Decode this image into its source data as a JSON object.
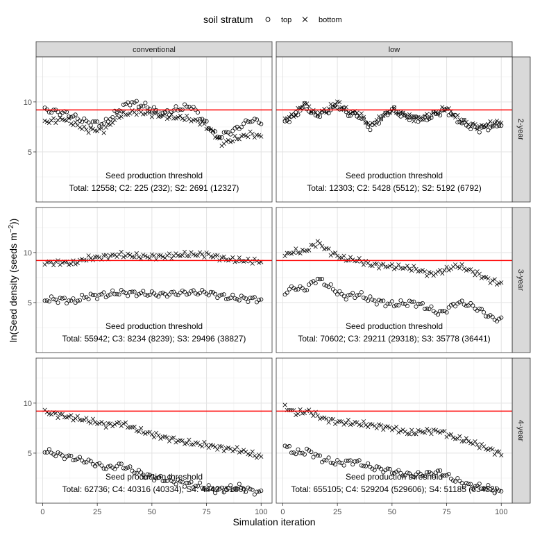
{
  "chart_data": {
    "type": "scatter",
    "xlabel": "Simulation iteration",
    "ylabel_prefix": "ln(Seed density (seeds m",
    "ylabel_sup": "−2",
    "ylabel_suffix": "))",
    "legend_title": "soil stratum",
    "legend_items": [
      {
        "key": "top",
        "label": "top",
        "shape": "circle"
      },
      {
        "key": "bottom",
        "label": "bottom",
        "shape": "cross"
      }
    ],
    "legend_placement": "top",
    "xlim": [
      -3,
      105
    ],
    "ylim": [
      0,
      14.5
    ],
    "x_ticks": [
      0,
      25,
      50,
      75,
      100
    ],
    "y_ticks": [
      5,
      10
    ],
    "grid": true,
    "threshold_value": 9.2,
    "threshold_color": "#ff0000",
    "col_strips": [
      "conventional",
      "low"
    ],
    "row_strips": [
      "2-year",
      "3-year",
      "4-year"
    ],
    "panels": [
      {
        "row": 0,
        "col": 0,
        "threshold_label": "Seed production threshold",
        "total_text": "Total: 12558; C2: 225 (232); S2: 2691 (12327)",
        "top_anchors": [
          [
            1,
            9.2
          ],
          [
            10,
            8.9
          ],
          [
            20,
            8.0
          ],
          [
            28,
            7.8
          ],
          [
            35,
            9.2
          ],
          [
            40,
            10.0
          ],
          [
            48,
            9.5
          ],
          [
            55,
            8.8
          ],
          [
            62,
            9.3
          ],
          [
            68,
            9.6
          ],
          [
            75,
            7.8
          ],
          [
            80,
            6.5
          ],
          [
            88,
            7.2
          ],
          [
            95,
            8.2
          ],
          [
            100,
            8.0
          ]
        ],
        "bottom_anchors": [
          [
            1,
            8.0
          ],
          [
            10,
            8.3
          ],
          [
            20,
            7.2
          ],
          [
            28,
            7.2
          ],
          [
            35,
            8.6
          ],
          [
            42,
            9.0
          ],
          [
            50,
            8.8
          ],
          [
            58,
            8.5
          ],
          [
            65,
            8.4
          ],
          [
            72,
            8.0
          ],
          [
            78,
            7.0
          ],
          [
            82,
            5.8
          ],
          [
            88,
            6.3
          ],
          [
            95,
            6.8
          ],
          [
            100,
            6.5
          ]
        ]
      },
      {
        "row": 0,
        "col": 1,
        "threshold_label": "Seed production threshold",
        "total_text": "Total: 12303; C2: 5428 (5512); S2: 5192 (6792)",
        "top_anchors": [
          [
            1,
            8.0
          ],
          [
            5,
            8.6
          ],
          [
            10,
            9.6
          ],
          [
            15,
            8.6
          ],
          [
            20,
            9.0
          ],
          [
            25,
            9.6
          ],
          [
            30,
            8.8
          ],
          [
            35,
            8.6
          ],
          [
            40,
            7.4
          ],
          [
            45,
            8.3
          ],
          [
            50,
            9.3
          ],
          [
            55,
            8.6
          ],
          [
            60,
            8.4
          ],
          [
            65,
            8.2
          ],
          [
            70,
            8.8
          ],
          [
            75,
            9.2
          ],
          [
            80,
            8.2
          ],
          [
            85,
            7.6
          ],
          [
            90,
            7.3
          ],
          [
            95,
            7.5
          ],
          [
            100,
            7.8
          ]
        ],
        "bottom_anchors": [
          [
            1,
            8.4
          ],
          [
            5,
            8.6
          ],
          [
            10,
            9.9
          ],
          [
            15,
            8.8
          ],
          [
            20,
            9.2
          ],
          [
            25,
            10.0
          ],
          [
            30,
            9.0
          ],
          [
            35,
            8.9
          ],
          [
            40,
            7.6
          ],
          [
            45,
            8.5
          ],
          [
            50,
            9.2
          ],
          [
            55,
            8.8
          ],
          [
            60,
            8.3
          ],
          [
            65,
            8.5
          ],
          [
            70,
            8.9
          ],
          [
            75,
            9.4
          ],
          [
            80,
            8.4
          ],
          [
            85,
            7.8
          ],
          [
            90,
            7.5
          ],
          [
            95,
            7.8
          ],
          [
            100,
            8.0
          ]
        ]
      },
      {
        "row": 1,
        "col": 0,
        "threshold_label": "Seed production threshold",
        "total_text": "Total: 55942; C3: 8234 (8239); S3: 29496 (38827)",
        "top_anchors": [
          [
            1,
            5.3
          ],
          [
            10,
            5.3
          ],
          [
            14,
            5.1
          ],
          [
            20,
            5.6
          ],
          [
            30,
            5.8
          ],
          [
            35,
            6.0
          ],
          [
            45,
            5.9
          ],
          [
            55,
            5.8
          ],
          [
            65,
            6.0
          ],
          [
            75,
            6.0
          ],
          [
            85,
            5.5
          ],
          [
            100,
            5.3
          ]
        ],
        "bottom_anchors": [
          [
            1,
            9.0
          ],
          [
            10,
            9.0
          ],
          [
            14,
            8.9
          ],
          [
            20,
            9.4
          ],
          [
            30,
            9.6
          ],
          [
            35,
            9.8
          ],
          [
            45,
            9.6
          ],
          [
            55,
            9.6
          ],
          [
            65,
            9.8
          ],
          [
            75,
            9.8
          ],
          [
            85,
            9.3
          ],
          [
            100,
            9.1
          ]
        ]
      },
      {
        "row": 1,
        "col": 1,
        "threshold_label": "Seed production threshold",
        "total_text": "Total: 70602;  C3: 29211 (29318); S3: 35778 (36441)",
        "top_anchors": [
          [
            1,
            6.0
          ],
          [
            5,
            6.5
          ],
          [
            10,
            6.3
          ],
          [
            16,
            7.4
          ],
          [
            22,
            6.5
          ],
          [
            28,
            5.6
          ],
          [
            35,
            5.8
          ],
          [
            40,
            5.3
          ],
          [
            50,
            4.8
          ],
          [
            60,
            5.0
          ],
          [
            65,
            4.6
          ],
          [
            72,
            3.9
          ],
          [
            75,
            4.3
          ],
          [
            80,
            5.0
          ],
          [
            85,
            4.8
          ],
          [
            90,
            4.3
          ],
          [
            96,
            3.4
          ],
          [
            100,
            3.3
          ]
        ],
        "bottom_anchors": [
          [
            1,
            9.7
          ],
          [
            5,
            10.1
          ],
          [
            10,
            10.1
          ],
          [
            16,
            11.0
          ],
          [
            22,
            10.0
          ],
          [
            28,
            9.4
          ],
          [
            35,
            9.2
          ],
          [
            40,
            8.8
          ],
          [
            50,
            8.6
          ],
          [
            60,
            8.4
          ],
          [
            68,
            7.8
          ],
          [
            75,
            8.3
          ],
          [
            80,
            8.7
          ],
          [
            88,
            8.0
          ],
          [
            95,
            7.2
          ],
          [
            100,
            6.9
          ]
        ]
      },
      {
        "row": 2,
        "col": 0,
        "threshold_label": "Seed production threshold",
        "total_text": "Total: 62736; C4: 40316 (40334); S4: 4442 (5180)",
        "top_anchors": [
          [
            1,
            5.2
          ],
          [
            10,
            4.7
          ],
          [
            20,
            4.2
          ],
          [
            30,
            3.5
          ],
          [
            36,
            3.8
          ],
          [
            42,
            3.2
          ],
          [
            50,
            2.6
          ],
          [
            60,
            2.2
          ],
          [
            70,
            1.8
          ],
          [
            80,
            1.3
          ],
          [
            90,
            1.6
          ],
          [
            100,
            1.0
          ]
        ],
        "bottom_anchors": [
          [
            1,
            9.1
          ],
          [
            10,
            8.7
          ],
          [
            20,
            8.3
          ],
          [
            30,
            7.8
          ],
          [
            36,
            8.0
          ],
          [
            45,
            7.2
          ],
          [
            55,
            6.6
          ],
          [
            65,
            6.1
          ],
          [
            75,
            5.8
          ],
          [
            82,
            5.5
          ],
          [
            90,
            5.3
          ],
          [
            100,
            4.6
          ]
        ]
      },
      {
        "row": 2,
        "col": 1,
        "threshold_label": "Seed production threshold",
        "total_text": "Total: 655105; C4: 529204 (529606); S4: 51185 (63452)",
        "top_anchors": [
          [
            1,
            5.7
          ],
          [
            6,
            5.0
          ],
          [
            12,
            5.2
          ],
          [
            18,
            4.4
          ],
          [
            25,
            4.0
          ],
          [
            33,
            4.2
          ],
          [
            40,
            3.6
          ],
          [
            50,
            3.2
          ],
          [
            58,
            2.8
          ],
          [
            65,
            2.9
          ],
          [
            72,
            3.1
          ],
          [
            78,
            2.4
          ],
          [
            85,
            1.8
          ],
          [
            92,
            1.6
          ],
          [
            100,
            1.1
          ]
        ],
        "bottom_anchors": [
          [
            1,
            9.6
          ],
          [
            6,
            9.0
          ],
          [
            12,
            9.2
          ],
          [
            18,
            8.5
          ],
          [
            25,
            8.1
          ],
          [
            33,
            8.0
          ],
          [
            40,
            7.8
          ],
          [
            50,
            7.5
          ],
          [
            58,
            7.0
          ],
          [
            65,
            7.2
          ],
          [
            72,
            7.2
          ],
          [
            78,
            6.6
          ],
          [
            85,
            6.2
          ],
          [
            92,
            5.6
          ],
          [
            100,
            4.9
          ]
        ]
      }
    ]
  }
}
